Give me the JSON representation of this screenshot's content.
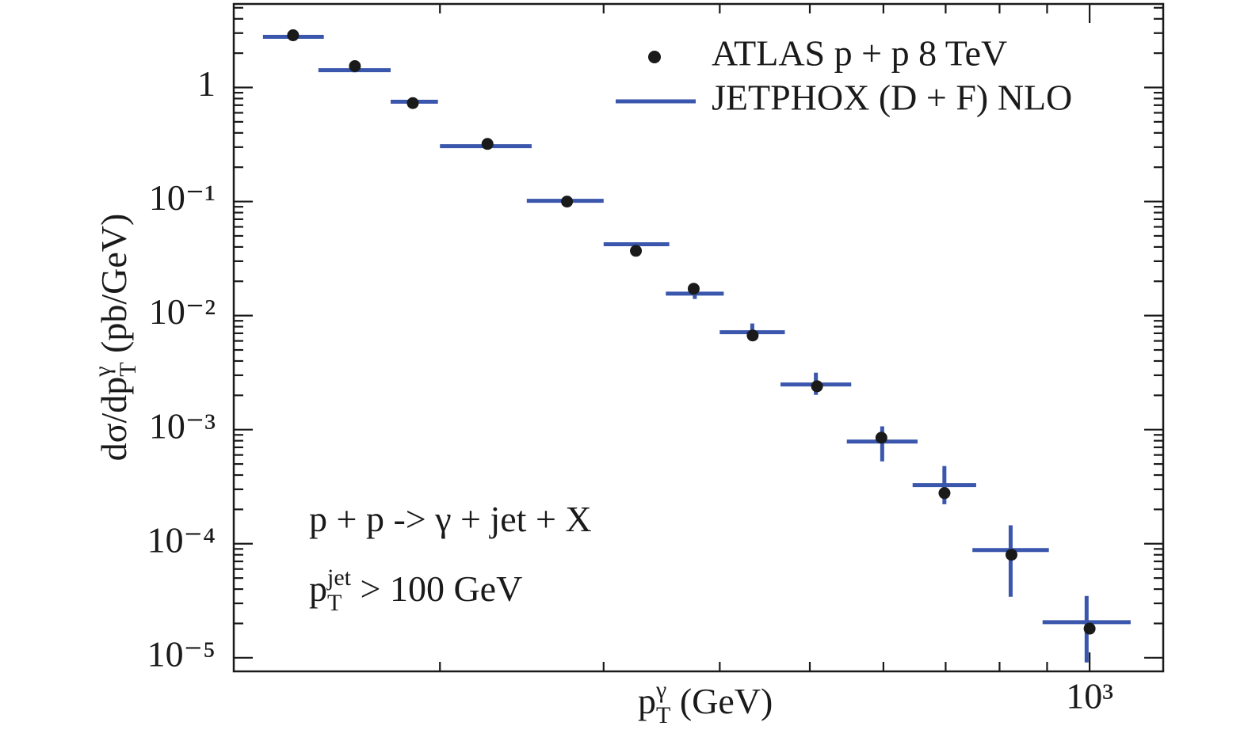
{
  "chart_data": {
    "type": "scatter",
    "x_label": {
      "text": "p",
      "sub": "T",
      "sup": "γ",
      "rest": " (GeV)"
    },
    "y_label": {
      "text": "dσ/dp",
      "sub": "T",
      "sup": "γ",
      "rest": " (pb/GeV)"
    },
    "annotations": [
      {
        "text": "p + p -> γ + jet + X"
      },
      {
        "text": "p",
        "sub": "T",
        "sup": "jet",
        "rest": " > 100 GeV"
      }
    ],
    "xlog": true,
    "ylog": true,
    "xlim": [
      120,
      1200
    ],
    "ylim": [
      7.6e-06,
      5.4
    ],
    "xticks": [
      {
        "value": 1000,
        "label": "10³"
      }
    ],
    "xminorticks": [
      200,
      300,
      400,
      500,
      600,
      700,
      800,
      900
    ],
    "yticks": [
      {
        "value": 1e-05,
        "label": "10⁻⁵"
      },
      {
        "value": 0.0001,
        "label": "10⁻⁴"
      },
      {
        "value": 0.001,
        "label": "10⁻³"
      },
      {
        "value": 0.01,
        "label": "10⁻²"
      },
      {
        "value": 0.1,
        "label": "10⁻¹"
      },
      1
    ],
    "yminorticks": [
      2e-05,
      3e-05,
      4e-05,
      5e-05,
      6e-05,
      7e-05,
      8e-05,
      9e-05,
      0.0002,
      0.0003,
      0.0004,
      0.0005,
      0.0006,
      0.0007,
      0.0008,
      0.0009,
      0.002,
      0.003,
      0.004,
      0.005,
      0.006,
      0.007,
      0.008,
      0.009,
      0.02,
      0.03,
      0.04,
      0.05,
      0.06,
      0.07,
      0.08,
      0.09,
      0.2,
      0.3,
      0.4,
      0.5,
      0.6,
      0.7,
      0.8,
      0.9,
      2,
      3,
      4,
      5
    ],
    "legend": "upper right",
    "series": [
      {
        "name": "ATLAS p + p 8 TeV",
        "style": "points",
        "color": "#1a1a1a",
        "x": [
          139,
          162,
          187,
          225,
          274,
          325,
          375,
          434,
          509,
          597,
          698,
          824,
          1000
        ],
        "values": [
          2.87,
          1.54,
          0.73,
          0.32,
          0.1,
          0.037,
          0.0172,
          0.0067,
          0.0024,
          0.00085,
          0.000278,
          8e-05,
          1.8e-05
        ]
      },
      {
        "name": "JETPHOX (D + F) NLO",
        "style": "bins",
        "color": "#3a56ad",
        "x_low": [
          129,
          148,
          177,
          200,
          248,
          300,
          350,
          400,
          465,
          548,
          645,
          748,
          890
        ],
        "x_high": [
          150,
          177,
          199,
          251,
          300,
          353,
          404,
          470,
          554,
          653,
          755,
          904,
          1107
        ],
        "values": [
          2.78,
          1.42,
          0.75,
          0.306,
          0.1016,
          0.0422,
          0.0156,
          0.00715,
          0.00249,
          0.000787,
          0.000327,
          8.8e-05,
          2.05e-05
        ],
        "y_low": [
          2.65,
          1.36,
          0.72,
          0.29,
          0.097,
          0.04,
          0.014,
          0.006,
          0.00202,
          0.000527,
          0.000222,
          3.43e-05,
          9.1e-06
        ],
        "y_high": [
          2.9,
          1.48,
          0.78,
          0.32,
          0.106,
          0.044,
          0.0181,
          0.00853,
          0.00316,
          0.00107,
          0.00048,
          0.000145,
          3.48e-05
        ]
      }
    ]
  }
}
